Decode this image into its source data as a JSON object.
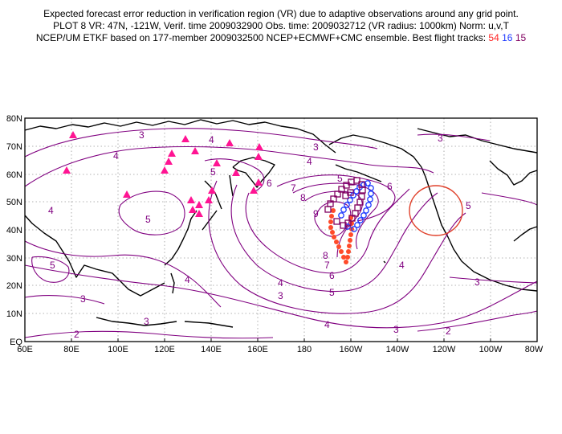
{
  "header": {
    "line1": "Expected forecast error reduction in verification region (VR) due to adaptive observations around any grid point.",
    "line2": "PLOT 8 VR: 47N, -121W, Verif. time 2009032900 Obs. time: 2009032712 (VR radius: 1000km) Norm: u,v,T",
    "line3_prefix": "NCEP/UM ETKF based on 177-member 2009032500 NCEP+ECMWF+CMC ensemble. Best flight tracks:",
    "track_red": "54",
    "track_blue": "16",
    "track_purple": "15"
  },
  "map": {
    "lon_labels": [
      "60E",
      "80E",
      "100E",
      "120E",
      "140E",
      "160E",
      "180",
      "160W",
      "140W",
      "120W",
      "100W",
      "80W"
    ],
    "lat_labels": [
      "80N",
      "70N",
      "60N",
      "50N",
      "40N",
      "30N",
      "20N",
      "10N",
      "EQ"
    ],
    "contour_labels": [
      "3",
      "4",
      "4",
      "5",
      "5",
      "4",
      "3",
      "4",
      "5",
      "6",
      "7",
      "8",
      "9",
      "8",
      "7",
      "6",
      "5",
      "4",
      "3",
      "6",
      "5",
      "4",
      "3",
      "4",
      "3",
      "2",
      "3",
      "3",
      "4",
      "2",
      "3",
      "5"
    ]
  },
  "colors": {
    "contour": "#800080",
    "triangle": "#ff1493",
    "red_track": "#ff4a2a",
    "blue_track": "#1f3bff",
    "purple_track": "#800060",
    "vr_circle": "#e0402a"
  }
}
